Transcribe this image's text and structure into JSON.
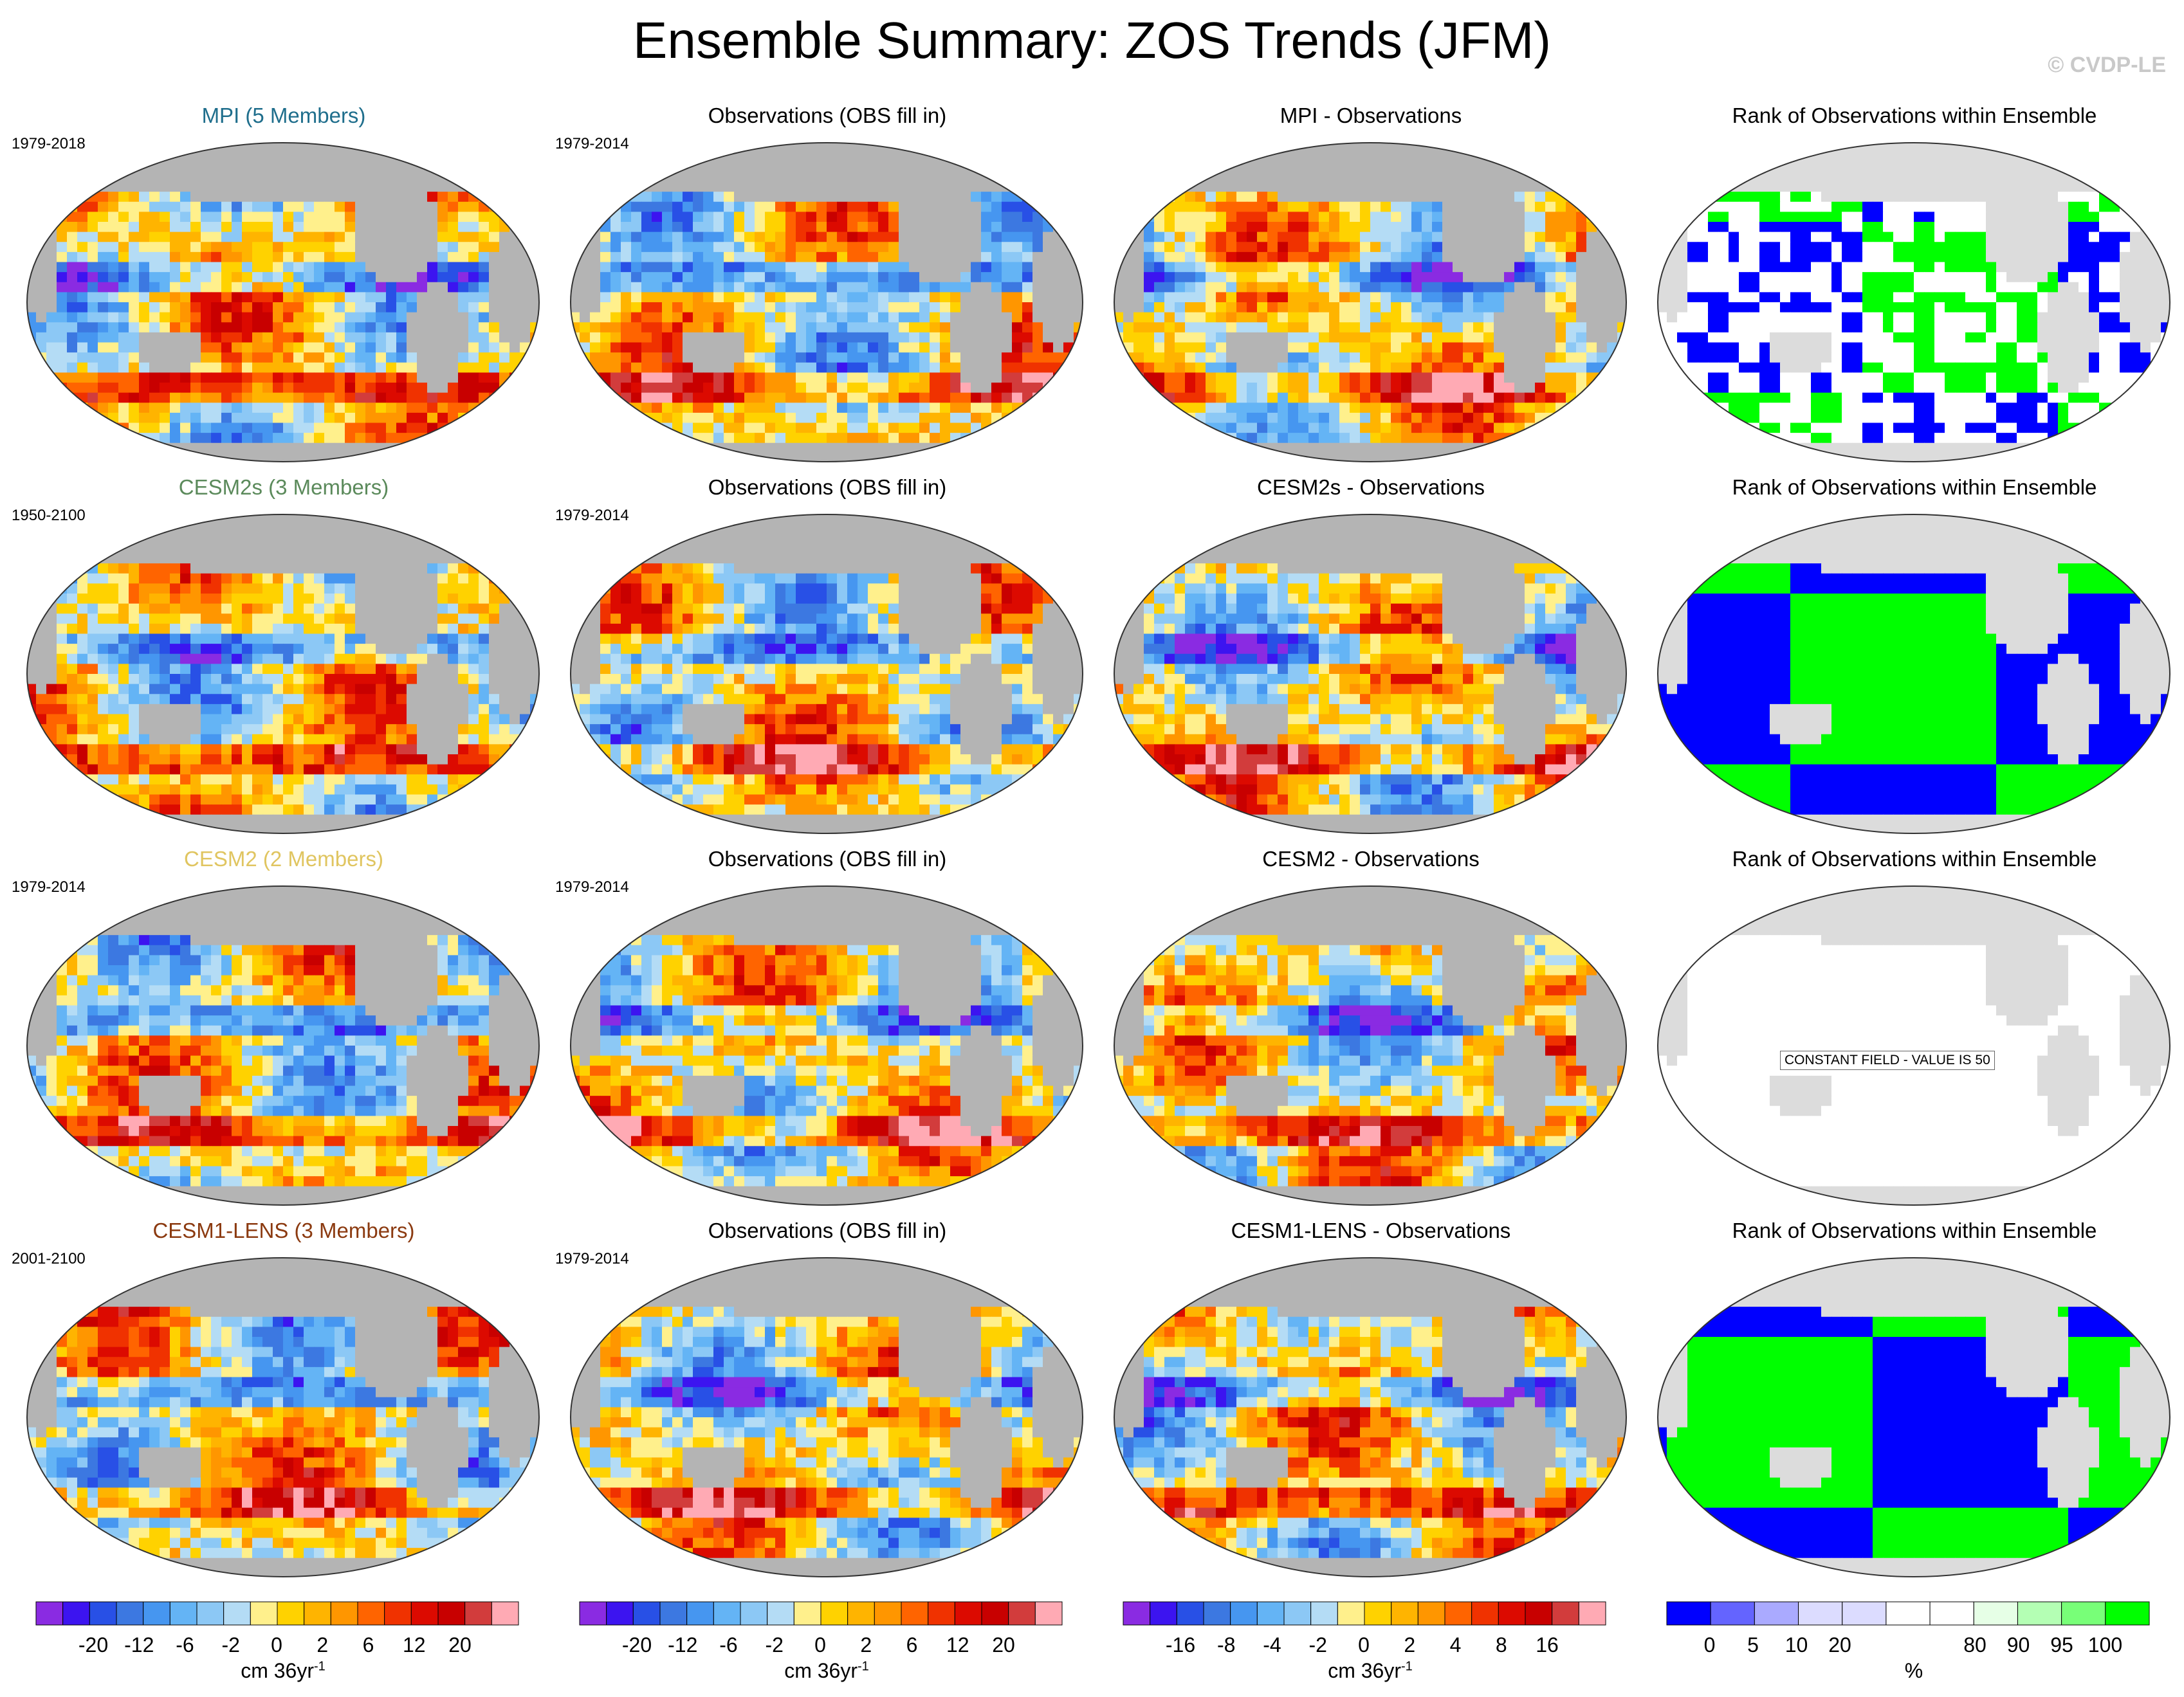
{
  "title": "Ensemble Summary: ZOS Trends (JFM)",
  "watermark": "© CVDP-LE",
  "rows": [
    {
      "model": {
        "title": "MPI (5 Members)",
        "title_color": "#1f6e8c",
        "period": "1979-2018"
      },
      "obs": {
        "title": "Observations (OBS fill in)",
        "period": "1979-2014"
      },
      "diff": {
        "title": "MPI - Observations"
      },
      "rank": {
        "title": "Rank of Observations within Ensemble"
      }
    },
    {
      "model": {
        "title": "CESM2s (3 Members)",
        "title_color": "#5b8a5b",
        "period": "1950-2100"
      },
      "obs": {
        "title": "Observations (OBS fill in)",
        "period": "1979-2014"
      },
      "diff": {
        "title": "CESM2s - Observations"
      },
      "rank": {
        "title": "Rank of Observations within Ensemble"
      }
    },
    {
      "model": {
        "title": "CESM2 (2 Members)",
        "title_color": "#e0c560",
        "period": "1979-2014"
      },
      "obs": {
        "title": "Observations (OBS fill in)",
        "period": "1979-2014"
      },
      "diff": {
        "title": "CESM2 - Observations"
      },
      "rank": {
        "title": "Rank of Observations within Ensemble",
        "note": "CONSTANT FIELD - VALUE IS 50"
      }
    },
    {
      "model": {
        "title": "CESM1-LENS (3 Members)",
        "title_color": "#8b3a10",
        "period": "2001-2100"
      },
      "obs": {
        "title": "Observations (OBS fill in)",
        "period": "1979-2014"
      },
      "diff": {
        "title": "CESM1-LENS - Observations"
      },
      "rank": {
        "title": "Rank of Observations within Ensemble"
      }
    }
  ],
  "colorbars": [
    {
      "name": "trend",
      "colors": [
        "#8a2be2",
        "#3c14f0",
        "#2850e6",
        "#3c78e1",
        "#4696f0",
        "#64b4f5",
        "#8cc8f5",
        "#b4dcf5",
        "#fff08c",
        "#ffd200",
        "#ffb400",
        "#ff9600",
        "#ff6400",
        "#f03200",
        "#dc0a00",
        "#c80000",
        "#d23c3c",
        "#ffaab4"
      ],
      "ticks": [
        "-20",
        "-12",
        "-6",
        "-2",
        "0",
        "2",
        "6",
        "12",
        "20"
      ],
      "unit": "cm 36yr",
      "unit_sup": "-1"
    },
    {
      "name": "trend-obs",
      "colors": [
        "#8a2be2",
        "#3c14f0",
        "#2850e6",
        "#3c78e1",
        "#4696f0",
        "#64b4f5",
        "#8cc8f5",
        "#b4dcf5",
        "#fff08c",
        "#ffd200",
        "#ffb400",
        "#ff9600",
        "#ff6400",
        "#f03200",
        "#dc0a00",
        "#c80000",
        "#d23c3c",
        "#ffaab4"
      ],
      "ticks": [
        "-20",
        "-12",
        "-6",
        "-2",
        "0",
        "2",
        "6",
        "12",
        "20"
      ],
      "unit": "cm 36yr",
      "unit_sup": "-1"
    },
    {
      "name": "difference",
      "colors": [
        "#8a2be2",
        "#3c14f0",
        "#2850e6",
        "#3c78e1",
        "#4696f0",
        "#64b4f5",
        "#8cc8f5",
        "#b4dcf5",
        "#fff08c",
        "#ffd200",
        "#ffb400",
        "#ff9600",
        "#ff6400",
        "#f03200",
        "#dc0a00",
        "#c80000",
        "#d23c3c",
        "#ffaab4"
      ],
      "ticks": [
        "-16",
        "-8",
        "-4",
        "-2",
        "0",
        "2",
        "4",
        "8",
        "16"
      ],
      "unit": "cm 36yr",
      "unit_sup": "-1"
    },
    {
      "name": "rank",
      "colors": [
        "#0000ff",
        "#6464ff",
        "#aaaaff",
        "#dcdcff",
        "#dcdcff",
        "#ffffff",
        "#ffffff",
        "#e6ffe6",
        "#b4ffb4",
        "#78ff78",
        "#00ff00"
      ],
      "ticks": [
        "0",
        "5",
        "10",
        "20",
        "80",
        "90",
        "95",
        "100"
      ],
      "unit": "%",
      "unit_sup": ""
    }
  ],
  "chart_data": [
    {
      "type": "heatmap",
      "panel": "model",
      "title": "MPI (5 Members)",
      "period": "1979-2018",
      "colorbar": "trend",
      "units": "cm 36yr-1",
      "levels": [
        -20,
        -16,
        -12,
        -8,
        -6,
        -4,
        -2,
        -1,
        0,
        1,
        2,
        4,
        6,
        8,
        12,
        16,
        20
      ]
    },
    {
      "type": "heatmap",
      "panel": "obs",
      "title": "Observations (OBS fill in)",
      "period": "1979-2014",
      "colorbar": "trend",
      "units": "cm 36yr-1",
      "levels": [
        -20,
        -16,
        -12,
        -8,
        -6,
        -4,
        -2,
        -1,
        0,
        1,
        2,
        4,
        6,
        8,
        12,
        16,
        20
      ]
    },
    {
      "type": "heatmap",
      "panel": "diff",
      "title": "MPI - Observations",
      "colorbar": "difference",
      "units": "cm 36yr-1",
      "levels": [
        -16,
        -12,
        -8,
        -6,
        -4,
        -3,
        -2,
        -1,
        0,
        1,
        2,
        3,
        4,
        6,
        8,
        12,
        16
      ]
    },
    {
      "type": "heatmap",
      "panel": "rank",
      "title": "Rank of Observations within Ensemble",
      "colorbar": "rank",
      "units": "%",
      "levels": [
        0,
        5,
        10,
        20,
        80,
        90,
        95,
        100
      ]
    }
  ]
}
